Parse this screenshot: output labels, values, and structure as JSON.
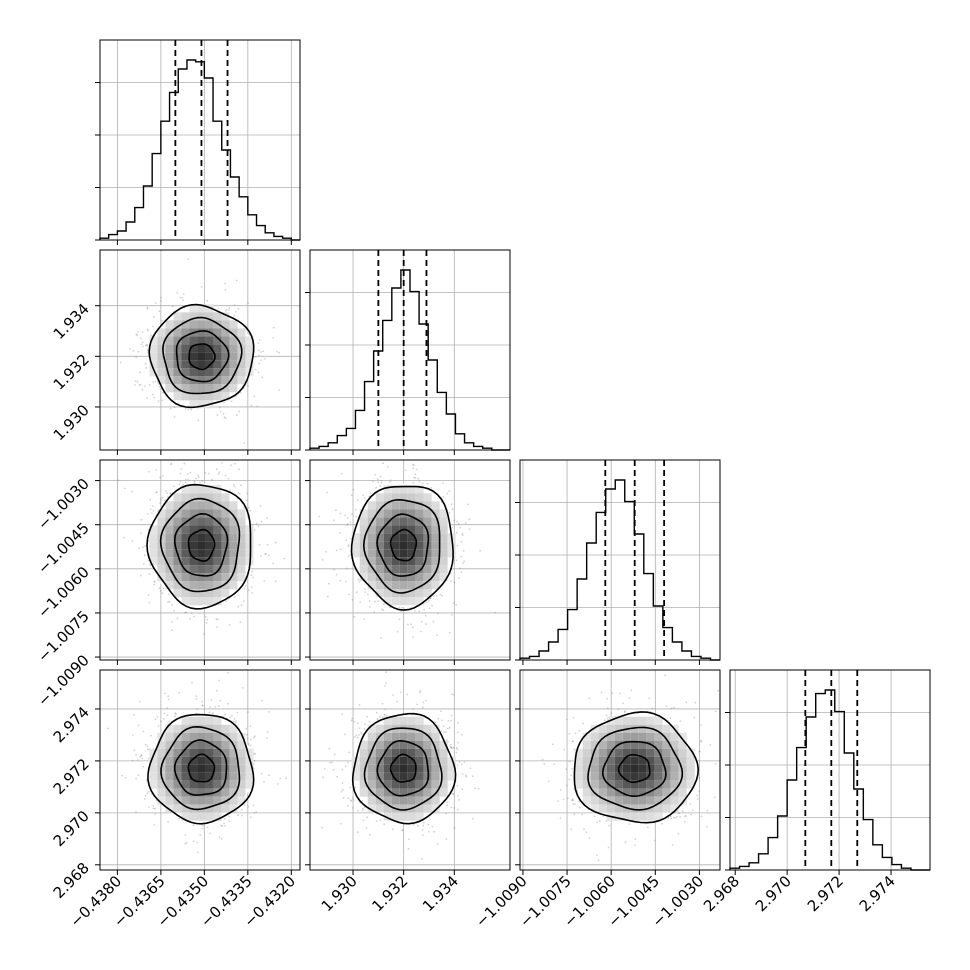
{
  "chart_data": {
    "type": "corner",
    "grid": true,
    "parameters": [
      {
        "index": 0,
        "median": -0.4351,
        "q16": -0.436,
        "q84": -0.4342,
        "std": 0.00085,
        "range": [
          -0.4386,
          -0.4317
        ],
        "ticks": [
          -0.438,
          -0.4365,
          -0.435,
          -0.4335,
          -0.432
        ],
        "tick_labels": [
          "−0.4380",
          "−0.4365",
          "−0.4350",
          "−0.4335",
          "−0.4320"
        ]
      },
      {
        "index": 1,
        "median": 1.932,
        "q16": 1.931,
        "q84": 1.9329,
        "std": 0.00095,
        "range": [
          1.9283,
          1.9362
        ],
        "ticks": [
          1.93,
          1.932,
          1.934
        ],
        "tick_labels": [
          "1.930",
          "1.932",
          "1.934"
        ]
      },
      {
        "index": 2,
        "median": -1.0052,
        "q16": -1.0062,
        "q84": -1.0042,
        "std": 0.001,
        "range": [
          -1.0091,
          -1.0023
        ],
        "ticks": [
          -1.009,
          -1.0075,
          -1.006,
          -1.0045,
          -1.003
        ],
        "tick_labels": [
          "−1.0090",
          "−1.0075",
          "−1.0060",
          "−1.0045",
          "−1.0030"
        ]
      },
      {
        "index": 3,
        "median": 2.9717,
        "q16": 2.9707,
        "q84": 2.9727,
        "std": 0.001,
        "range": [
          2.9678,
          2.9755
        ],
        "ticks": [
          2.968,
          2.97,
          2.972,
          2.974
        ],
        "tick_labels": [
          "2.968",
          "2.970",
          "2.972",
          "2.974"
        ]
      }
    ],
    "histograms": [
      {
        "param": 0,
        "counts": [
          1,
          3,
          5,
          10,
          18,
          30,
          48,
          66,
          82,
          95,
          100,
          99,
          90,
          66,
          50,
          35,
          24,
          14,
          8,
          4,
          2,
          1,
          0
        ]
      },
      {
        "param": 1,
        "counts": [
          1,
          2,
          4,
          8,
          12,
          22,
          38,
          55,
          72,
          90,
          100,
          88,
          70,
          50,
          32,
          20,
          9,
          4,
          2,
          1,
          0,
          0
        ]
      },
      {
        "param": 2,
        "counts": [
          1,
          2,
          5,
          10,
          17,
          28,
          45,
          65,
          82,
          95,
          100,
          88,
          70,
          48,
          30,
          18,
          10,
          5,
          2,
          1,
          0
        ]
      },
      {
        "param": 3,
        "counts": [
          1,
          2,
          4,
          9,
          18,
          30,
          50,
          68,
          85,
          98,
          100,
          88,
          65,
          45,
          28,
          14,
          7,
          3,
          1,
          0,
          0
        ]
      }
    ],
    "contour_levels_sigma": [
      0.5,
      1.0,
      1.5,
      2.0
    ],
    "quantile_lines": [
      "q16",
      "median",
      "q84"
    ],
    "colors": {
      "line": "#000000",
      "grid": "#b0b0b0",
      "scatter": "#7f7f7f"
    }
  }
}
